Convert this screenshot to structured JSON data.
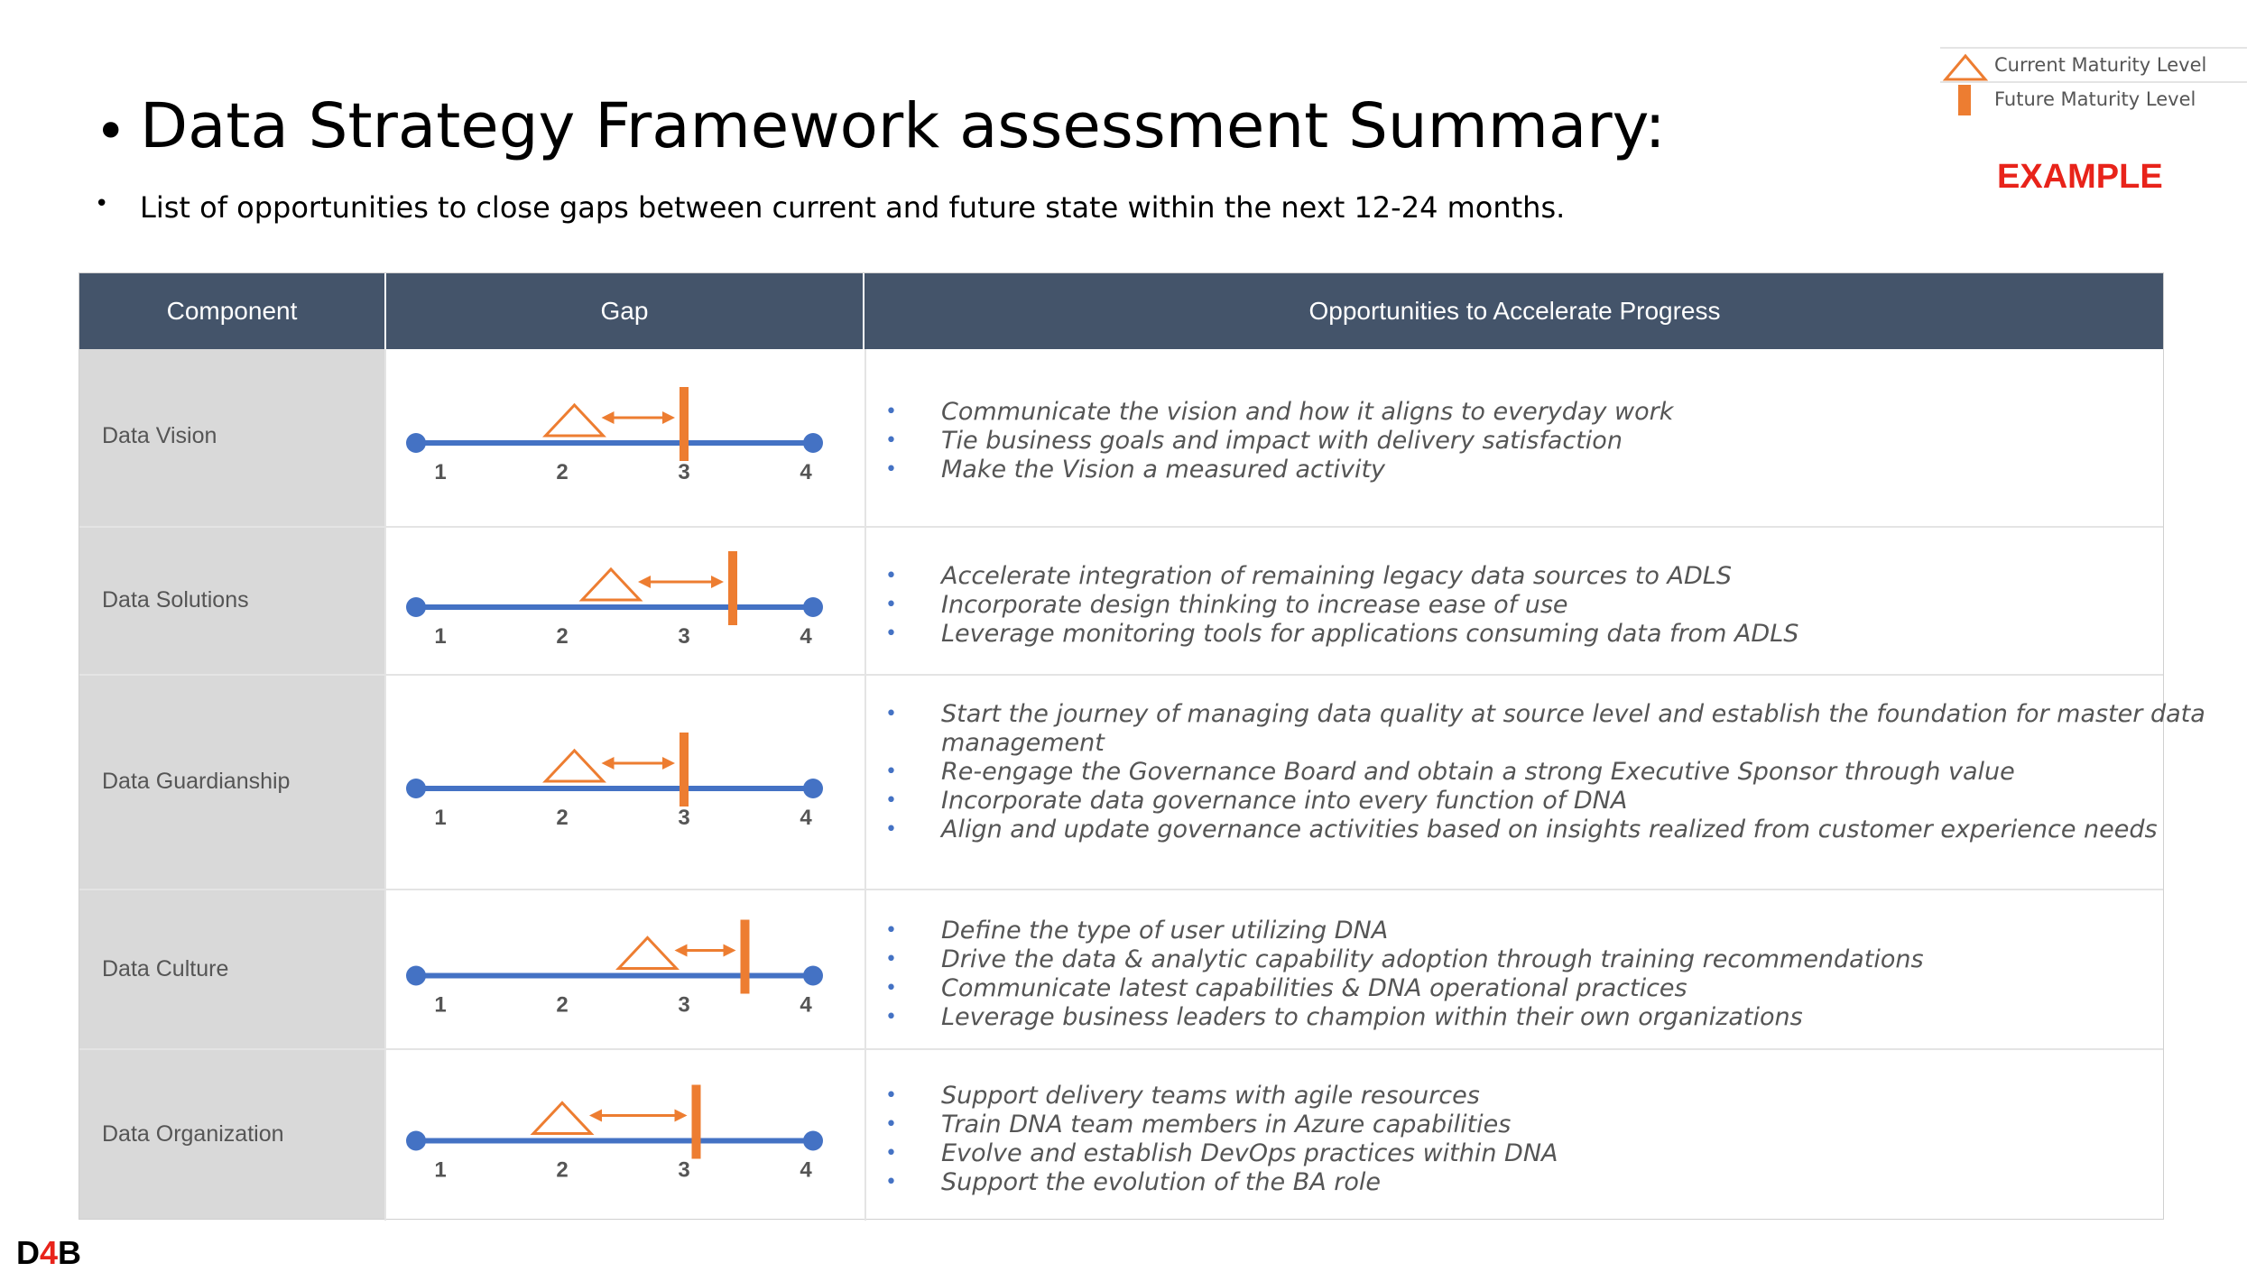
{
  "header": {
    "title_bullet": "•",
    "title": "Data Strategy Framework assessment Summary:",
    "subtitle_bullet": "•",
    "subtitle": "List of opportunities to close gaps between current and future state within the next 12-24 months."
  },
  "legend": {
    "current_label": "Current Maturity Level",
    "future_label": "Future Maturity Level",
    "current_icon": "triangle-icon",
    "future_icon": "bar-icon",
    "stamp": "EXAMPLE"
  },
  "table": {
    "headers": [
      "Component",
      "Gap",
      "Opportunities to Accelerate Progress"
    ],
    "scale_labels": [
      "1",
      "2",
      "3",
      "4"
    ],
    "rows": [
      {
        "component": "Data Vision",
        "current_level": 2.1,
        "future_level": 3.0,
        "opportunities": [
          "Communicate the vision and how it aligns to everyday work",
          "Tie business goals and impact with delivery satisfaction",
          "Make the Vision a measured activity"
        ]
      },
      {
        "component": "Data Solutions",
        "current_level": 2.4,
        "future_level": 3.4,
        "opportunities": [
          "Accelerate integration of remaining legacy data sources to ADLS",
          "Incorporate design thinking to increase ease of use",
          "Leverage monitoring tools for applications consuming data from ADLS"
        ]
      },
      {
        "component": "Data Guardianship",
        "current_level": 2.1,
        "future_level": 3.0,
        "opportunities": [
          "Start the journey of managing data quality at source level and establish the foundation for master data management",
          "Re-engage the Governance Board and obtain a strong Executive Sponsor through value",
          "Incorporate data governance into every function of DNA",
          "Align and update governance activities based on insights realized from customer experience needs"
        ]
      },
      {
        "component": "Data Culture",
        "current_level": 2.7,
        "future_level": 3.5,
        "opportunities": [
          "Define the type of user utilizing DNA",
          "Drive the data & analytic capability adoption through training recommendations",
          "Communicate latest capabilities & DNA operational practices",
          "Leverage business leaders to champion within their own organizations"
        ]
      },
      {
        "component": "Data Organization",
        "current_level": 2.0,
        "future_level": 3.1,
        "opportunities": [
          "Support delivery teams with agile resources",
          "Train DNA team members in Azure capabilities",
          "Evolve and establish DevOps practices within DNA",
          "Support the evolution of the BA role"
        ]
      }
    ]
  },
  "colors": {
    "header_bg": "#44546a",
    "component_bg": "#d9d9d9",
    "scale_line": "#4472c4",
    "marker": "#ed7d31",
    "bullet": "#4472c4",
    "example": "#e8231a"
  },
  "footer": {
    "logo_d": "D",
    "logo_4": "4",
    "logo_b": "B"
  }
}
